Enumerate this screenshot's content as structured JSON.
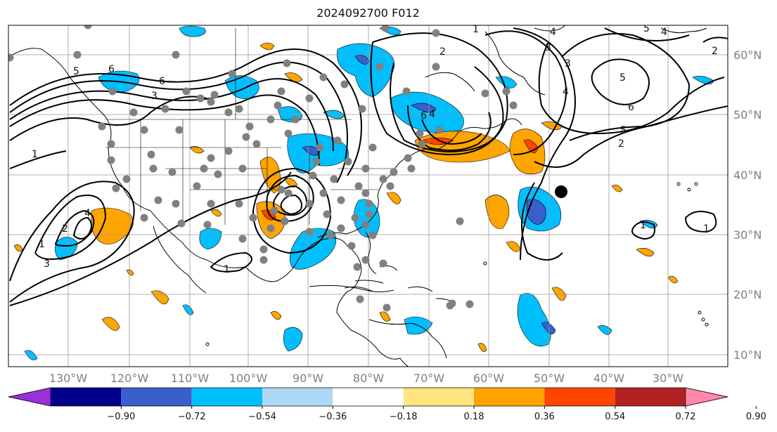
{
  "title": "2024092700 F012",
  "lon_labels": [
    "130°W",
    "120°W",
    "110°W",
    "100°W",
    "90°W",
    "80°W",
    "70°W",
    "60°W",
    "50°W",
    "40°W",
    "30°W"
  ],
  "lat_labels": [
    "60°N",
    "50°N",
    "40°N",
    "30°N",
    "20°N",
    "10°N"
  ],
  "colorbar": {
    "colors": [
      "#9b30d9",
      "#00008b",
      "#3a5fcd",
      "#00bfff",
      "#add8f6",
      "#ffffff",
      "#ffe680",
      "#ffa500",
      "#ff4500",
      "#b22222",
      "#ff88aa"
    ],
    "labels": [
      "−0.90",
      "−0.72",
      "−0.54",
      "−0.36",
      "−0.18",
      "0.18",
      "0.36",
      "0.54",
      "0.72",
      "0.90"
    ]
  },
  "contour_labels": [
    "1",
    "2",
    "3",
    "4",
    "5",
    "6"
  ],
  "marker": {
    "name": "storm center"
  }
}
